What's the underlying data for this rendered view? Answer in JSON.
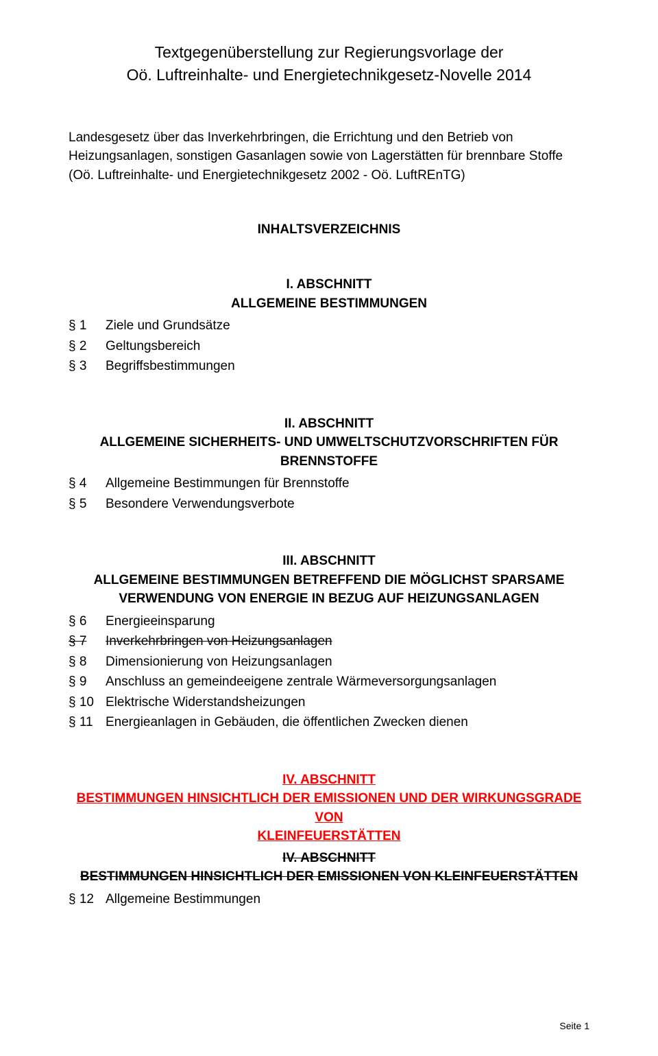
{
  "title": {
    "line1": "Textgegenüberstellung zur Regierungsvorlage der",
    "line2": "Oö. Luftreinhalte- und Energietechnikgesetz-Novelle 2014"
  },
  "law_intro": "Landesgesetz über das Inverkehrbringen, die Errichtung und den Betrieb von Heizungsanlagen, sonstigen Gasanlagen sowie von Lagerstätten für brennbare Stoffe (Oö. Luftreinhalte- und Energietechnikgesetz 2002 - Oö. LuftREnTG)",
  "toc_heading": "INHALTSVERZEICHNIS",
  "section1": {
    "label": "I. ABSCHNITT",
    "title": "ALLGEMEINE BESTIMMUNGEN",
    "items": [
      {
        "para": "§ 1",
        "text": "Ziele und Grundsätze"
      },
      {
        "para": "§ 2",
        "text": "Geltungsbereich"
      },
      {
        "para": "§ 3",
        "text": "Begriffsbestimmungen"
      }
    ]
  },
  "section2": {
    "label": "II. ABSCHNITT",
    "title_line1": "ALLGEMEINE SICHERHEITS- UND UMWELTSCHUTZVORSCHRIFTEN FÜR",
    "title_line2": "BRENNSTOFFE",
    "items": [
      {
        "para": "§ 4",
        "text": "Allgemeine Bestimmungen für Brennstoffe"
      },
      {
        "para": "§ 5",
        "text": "Besondere Verwendungsverbote"
      }
    ]
  },
  "section3": {
    "label": "III. ABSCHNITT",
    "title_line1": "ALLGEMEINE BESTIMMUNGEN BETREFFEND DIE MÖGLICHST SPARSAME",
    "title_line2": "VERWENDUNG VON ENERGIE IN BEZUG AUF HEIZUNGSANLAGEN",
    "items": [
      {
        "para": "§ 6",
        "text": "Energieeinsparung",
        "strike": false
      },
      {
        "para": "§ 7",
        "text": "Inverkehrbringen von Heizungsanlagen",
        "strike": true
      },
      {
        "para": "§ 8",
        "text": "Dimensionierung von Heizungsanlagen",
        "strike": false
      },
      {
        "para": "§ 9",
        "text": "Anschluss an gemeindeeigene zentrale Wärmeversorgungsanlagen",
        "strike": false
      },
      {
        "para": "§ 10",
        "text": "Elektrische Widerstandsheizungen",
        "strike": false
      },
      {
        "para": "§ 11",
        "text": "Energieanlagen in Gebäuden, die öffentlichen Zwecken dienen",
        "strike": false
      }
    ]
  },
  "section4": {
    "ins_label": "IV. ABSCHNITT",
    "ins_title_line1": "BESTIMMUNGEN HINSICHTLICH DER EMISSIONEN UND DER WIRKUNGSGRADE VON",
    "ins_title_line2": "KLEINFEUERSTÄTTEN",
    "del_label": "IV. ABSCHNITT",
    "del_title": "BESTIMMUNGEN HINSICHTLICH DER EMISSIONEN VON KLEINFEUERSTÄTTEN",
    "items": [
      {
        "para": "§ 12",
        "text": "Allgemeine Bestimmungen"
      }
    ]
  },
  "page_number": "Seite 1",
  "colors": {
    "text": "#000000",
    "insert": "#ff0000",
    "background": "#ffffff"
  },
  "typography": {
    "title_fontsize": 23,
    "body_fontsize": 19,
    "pagenum_fontsize": 14,
    "font_family": "Arial"
  }
}
